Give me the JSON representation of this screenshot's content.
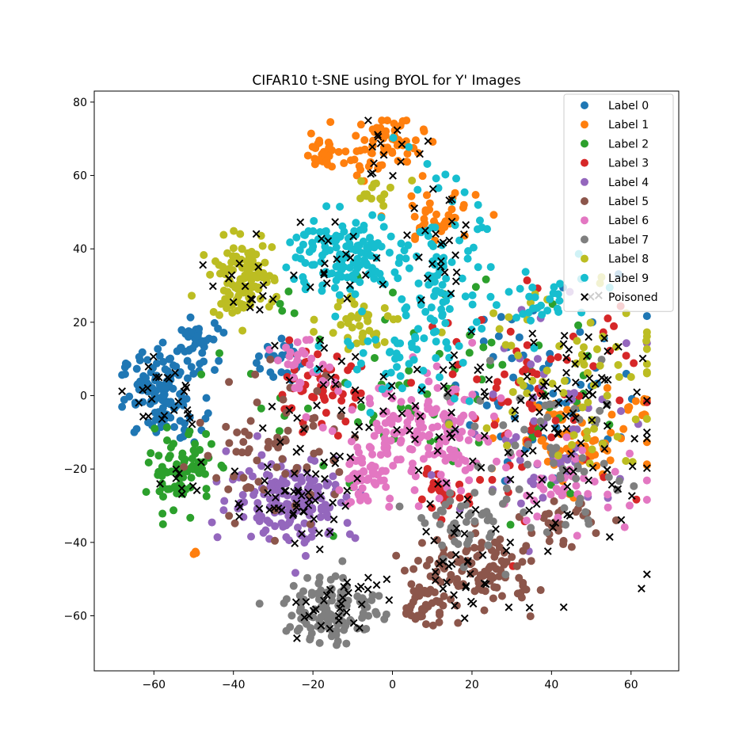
{
  "chart_data": {
    "type": "scatter",
    "title": "CIFAR10 t-SNE using BYOL for Y' Images",
    "xlabel": "",
    "ylabel": "",
    "xlim": [
      -75,
      72
    ],
    "ylim": [
      -75,
      83
    ],
    "x_ticks": [
      -60,
      -40,
      -20,
      0,
      20,
      40,
      60
    ],
    "y_ticks": [
      -60,
      -40,
      -20,
      0,
      20,
      40,
      60,
      80
    ],
    "x_tick_labels": [
      "−60",
      "−40",
      "−20",
      "0",
      "20",
      "40",
      "60"
    ],
    "y_tick_labels": [
      "−60",
      "−40",
      "−20",
      "0",
      "20",
      "40",
      "60",
      "80"
    ],
    "grid": false,
    "legend_position": "top-right",
    "series": [
      {
        "name": "Label 0",
        "color": "#1f77b4",
        "marker": "circle",
        "clusters": [
          {
            "cx": -58,
            "cy": 0,
            "sx": 5,
            "sy": 6,
            "n": 120
          },
          {
            "cx": -48,
            "cy": 15,
            "sx": 3,
            "sy": 4,
            "n": 35
          },
          {
            "cx": 40,
            "cy": 5,
            "sx": 12,
            "sy": 14,
            "n": 60
          },
          {
            "cx": -30,
            "cy": 10,
            "sx": 3,
            "sy": 3,
            "n": 25
          }
        ]
      },
      {
        "name": "Label 1",
        "color": "#ff7f0e",
        "marker": "circle",
        "clusters": [
          {
            "cx": -2,
            "cy": 68,
            "sx": 5,
            "sy": 4,
            "n": 70
          },
          {
            "cx": -18,
            "cy": 66,
            "sx": 2,
            "sy": 2,
            "n": 30
          },
          {
            "cx": 45,
            "cy": -12,
            "sx": 8,
            "sy": 6,
            "n": 70
          },
          {
            "cx": 62,
            "cy": -3,
            "sx": 2,
            "sy": 2,
            "n": 10
          },
          {
            "cx": -50,
            "cy": -43,
            "sx": 0.6,
            "sy": 0.6,
            "n": 4
          },
          {
            "cx": 10,
            "cy": 48,
            "sx": 6,
            "sy": 4,
            "n": 40
          }
        ]
      },
      {
        "name": "Label 2",
        "color": "#2ca02c",
        "marker": "circle",
        "clusters": [
          {
            "cx": -53,
            "cy": -20,
            "sx": 4,
            "sy": 5,
            "n": 80
          },
          {
            "cx": 10,
            "cy": 0,
            "sx": 25,
            "sy": 15,
            "n": 80
          }
        ]
      },
      {
        "name": "Label 3",
        "color": "#d62728",
        "marker": "circle",
        "clusters": [
          {
            "cx": 13,
            "cy": -27,
            "sx": 3,
            "sy": 2,
            "n": 30
          },
          {
            "cx": -20,
            "cy": 2,
            "sx": 6,
            "sy": 5,
            "n": 50
          },
          {
            "cx": 35,
            "cy": 0,
            "sx": 14,
            "sy": 14,
            "n": 70
          }
        ]
      },
      {
        "name": "Label 4",
        "color": "#9467bd",
        "marker": "circle",
        "clusters": [
          {
            "cx": -25,
            "cy": -28,
            "sx": 8,
            "sy": 6,
            "n": 170
          },
          {
            "cx": 40,
            "cy": -10,
            "sx": 14,
            "sy": 14,
            "n": 60
          }
        ]
      },
      {
        "name": "Label 5",
        "color": "#8c564b",
        "marker": "circle",
        "clusters": [
          {
            "cx": 22,
            "cy": -48,
            "sx": 7,
            "sy": 5,
            "n": 110
          },
          {
            "cx": 8,
            "cy": -57,
            "sx": 3,
            "sy": 3,
            "n": 40
          },
          {
            "cx": -30,
            "cy": -15,
            "sx": 10,
            "sy": 10,
            "n": 70
          },
          {
            "cx": 42,
            "cy": -35,
            "sx": 4,
            "sy": 3,
            "n": 30
          }
        ]
      },
      {
        "name": "Label 6",
        "color": "#e377c2",
        "marker": "circle",
        "clusters": [
          {
            "cx": 8,
            "cy": -12,
            "sx": 10,
            "sy": 8,
            "n": 170
          },
          {
            "cx": -8,
            "cy": -22,
            "sx": 3,
            "sy": 4,
            "n": 40
          },
          {
            "cx": -22,
            "cy": 8,
            "sx": 4,
            "sy": 3,
            "n": 30
          },
          {
            "cx": 45,
            "cy": -25,
            "sx": 10,
            "sy": 6,
            "n": 40
          }
        ]
      },
      {
        "name": "Label 7",
        "color": "#7f7f7f",
        "marker": "circle",
        "clusters": [
          {
            "cx": -15,
            "cy": -58,
            "sx": 6,
            "sy": 5,
            "n": 120
          },
          {
            "cx": 20,
            "cy": -35,
            "sx": 6,
            "sy": 4,
            "n": 40
          },
          {
            "cx": 40,
            "cy": -20,
            "sx": 14,
            "sy": 12,
            "n": 60
          }
        ]
      },
      {
        "name": "Label 8",
        "color": "#bcbd22",
        "marker": "circle",
        "clusters": [
          {
            "cx": -38,
            "cy": 32,
            "sx": 4,
            "sy": 5,
            "n": 110
          },
          {
            "cx": -8,
            "cy": 20,
            "sx": 5,
            "sy": 4,
            "n": 40
          },
          {
            "cx": 45,
            "cy": 10,
            "sx": 12,
            "sy": 14,
            "n": 70
          },
          {
            "cx": -5,
            "cy": 55,
            "sx": 3,
            "sy": 3,
            "n": 15
          }
        ]
      },
      {
        "name": "Label 9",
        "color": "#17becf",
        "marker": "circle",
        "clusters": [
          {
            "cx": -12,
            "cy": 38,
            "sx": 7,
            "sy": 6,
            "n": 140
          },
          {
            "cx": 12,
            "cy": 32,
            "sx": 5,
            "sy": 12,
            "n": 100
          },
          {
            "cx": 0,
            "cy": 10,
            "sx": 8,
            "sy": 6,
            "n": 40
          },
          {
            "cx": 38,
            "cy": 25,
            "sx": 6,
            "sy": 5,
            "n": 30
          }
        ]
      },
      {
        "name": "Poisoned",
        "color": "#000000",
        "marker": "x",
        "clusters": [
          {
            "cx": -58,
            "cy": 0,
            "sx": 5,
            "sy": 6,
            "n": 25
          },
          {
            "cx": -25,
            "cy": -28,
            "sx": 8,
            "sy": 6,
            "n": 50
          },
          {
            "cx": -15,
            "cy": -58,
            "sx": 6,
            "sy": 5,
            "n": 30
          },
          {
            "cx": 20,
            "cy": -45,
            "sx": 8,
            "sy": 7,
            "n": 35
          },
          {
            "cx": 45,
            "cy": -8,
            "sx": 12,
            "sy": 18,
            "n": 90
          },
          {
            "cx": -2,
            "cy": 68,
            "sx": 4,
            "sy": 4,
            "n": 15
          },
          {
            "cx": -15,
            "cy": 36,
            "sx": 8,
            "sy": 6,
            "n": 20
          },
          {
            "cx": 12,
            "cy": 40,
            "sx": 5,
            "sy": 10,
            "n": 25
          },
          {
            "cx": 8,
            "cy": -10,
            "sx": 12,
            "sy": 10,
            "n": 40
          },
          {
            "cx": -38,
            "cy": 30,
            "sx": 4,
            "sy": 5,
            "n": 15
          },
          {
            "cx": -53,
            "cy": -22,
            "sx": 3,
            "sy": 3,
            "n": 8
          },
          {
            "cx": -20,
            "cy": 0,
            "sx": 8,
            "sy": 8,
            "n": 20
          }
        ]
      }
    ]
  }
}
